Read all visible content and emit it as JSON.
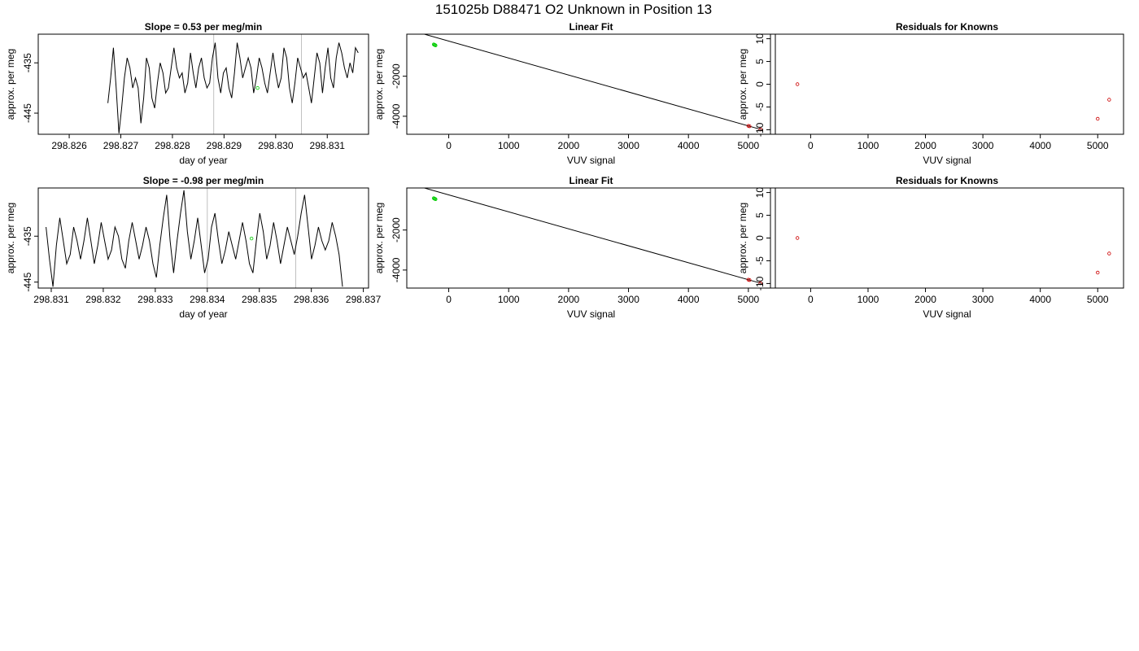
{
  "page_title": "151025b     D88471   O2 Unknown in Position  13",
  "colors": {
    "known": "#cc0000",
    "unknown": "#00cc00",
    "line": "#000000",
    "marker": "#c0c0c0"
  },
  "chart_data": [
    {
      "type": "line",
      "title": "Slope =  0.53  per meg/min",
      "xlabel": "day of year",
      "ylabel": "approx. per meg",
      "xlim": [
        298.8254,
        298.8318
      ],
      "ylim": [
        -449.2,
        -429.3
      ],
      "xticks": [
        298.826,
        298.827,
        298.828,
        298.829,
        298.83,
        298.831
      ],
      "xtick_labels": [
        "298.826",
        "298.827",
        "298.828",
        "298.829",
        "298.830",
        "298.831"
      ],
      "yticks": [
        -435,
        -445
      ],
      "ytick_labels": [
        "-435",
        "-445"
      ],
      "grid": false,
      "vertical_markers": [
        298.8288,
        298.8305
      ],
      "series": [
        {
          "x_start": 298.82675,
          "x_end": 298.8316,
          "values": [
            -443,
            -438,
            -432,
            -440,
            -449,
            -444,
            -438,
            -434,
            -436,
            -440,
            -438,
            -440,
            -447,
            -442,
            -434,
            -436,
            -442,
            -444,
            -439,
            -435,
            -437,
            -441,
            -440,
            -436,
            -432,
            -436,
            -438,
            -437,
            -441,
            -439,
            -433,
            -437,
            -440,
            -436,
            -434,
            -438,
            -440,
            -439,
            -434,
            -431,
            -438,
            -441,
            -437,
            -436,
            -440,
            -442,
            -437,
            -431,
            -434,
            -438,
            -436,
            -434,
            -436,
            -441,
            -438,
            -434,
            -436,
            -439,
            -441,
            -437,
            -433,
            -437,
            -440,
            -438,
            -432,
            -434,
            -440,
            -443,
            -439,
            -434,
            -436,
            -438,
            -437,
            -440,
            -443,
            -438,
            -433,
            -435,
            -441,
            -436,
            -432,
            -438,
            -440,
            -434,
            -431,
            -433,
            -436,
            -438,
            -435,
            -437,
            -432,
            -433
          ]
        }
      ],
      "points": [
        {
          "x": 298.82965,
          "y": -440,
          "color": "unknown"
        }
      ]
    },
    {
      "type": "scatter",
      "title": "Linear Fit",
      "xlabel": "VUV signal",
      "ylabel": "approx. per meg",
      "xlim": [
        -700,
        5450
      ],
      "ylim": [
        -4900,
        100
      ],
      "xticks": [
        0,
        1000,
        2000,
        3000,
        4000,
        5000
      ],
      "xtick_labels": [
        "0",
        "1000",
        "2000",
        "3000",
        "4000",
        "5000"
      ],
      "yticks": [
        -2000,
        -4000
      ],
      "ytick_labels": [
        "-2000",
        "-4000"
      ],
      "grid": false,
      "fit_line": {
        "x0": -500,
        "x1": 5220,
        "slope": -0.8476,
        "intercept": -245
      },
      "points": [
        {
          "x": -230,
          "y": -440,
          "color": "unknown"
        },
        {
          "x": -250,
          "y": -410,
          "color": "unknown"
        },
        {
          "x": -220,
          "y": -460,
          "color": "unknown"
        },
        {
          "x": -240,
          "y": -430,
          "color": "unknown"
        },
        {
          "x": 5000,
          "y": -4480,
          "color": "known"
        },
        {
          "x": 5020,
          "y": -4500,
          "color": "known"
        },
        {
          "x": 5200,
          "y": -4660,
          "color": "known"
        }
      ]
    },
    {
      "type": "scatter",
      "title": "Residuals for Knowns",
      "xlabel": "VUV signal",
      "ylabel": "approx. per meg",
      "xlim": [
        -700,
        5450
      ],
      "ylim": [
        -11,
        11
      ],
      "xticks": [
        0,
        1000,
        2000,
        3000,
        4000,
        5000
      ],
      "xtick_labels": [
        "0",
        "1000",
        "2000",
        "3000",
        "4000",
        "5000"
      ],
      "yticks": [
        10,
        5,
        0,
        -5,
        -10
      ],
      "ytick_labels": [
        "10",
        "5",
        "0",
        "-5",
        "-10"
      ],
      "grid": false,
      "points": [
        {
          "x": -230,
          "y": 0,
          "color": "known"
        },
        {
          "x": 5000,
          "y": -7.6,
          "color": "known"
        },
        {
          "x": 5200,
          "y": -3.4,
          "color": "known"
        }
      ]
    },
    {
      "type": "line",
      "title": "Slope =  -0.98  per meg/min",
      "xlabel": "day of year",
      "ylabel": "approx. per meg",
      "xlim": [
        298.83075,
        298.8371
      ],
      "ylim": [
        -446.3,
        -424.5
      ],
      "xticks": [
        298.831,
        298.832,
        298.833,
        298.834,
        298.835,
        298.836,
        298.837
      ],
      "xtick_labels": [
        "298.831",
        "298.832",
        "298.833",
        "298.834",
        "298.835",
        "298.836",
        "298.837"
      ],
      "yticks": [
        -435,
        -445
      ],
      "ytick_labels": [
        "-435",
        "-445"
      ],
      "grid": false,
      "vertical_markers": [
        298.834,
        298.8357
      ],
      "series": [
        {
          "x_start": 298.8309,
          "x_end": 298.8366,
          "values": [
            -433,
            -440,
            -446,
            -437,
            -431,
            -436,
            -441,
            -439,
            -433,
            -436,
            -440,
            -436,
            -431,
            -436,
            -441,
            -437,
            -432,
            -436,
            -440,
            -438,
            -433,
            -435,
            -440,
            -442,
            -436,
            -432,
            -436,
            -440,
            -437,
            -433,
            -436,
            -441,
            -444,
            -437,
            -431,
            -426,
            -436,
            -443,
            -436,
            -430,
            -425,
            -434,
            -440,
            -436,
            -431,
            -437,
            -443,
            -440,
            -433,
            -430,
            -436,
            -441,
            -438,
            -434,
            -437,
            -440,
            -436,
            -432,
            -436,
            -441,
            -443,
            -436,
            -430,
            -434,
            -440,
            -437,
            -432,
            -436,
            -441,
            -437,
            -433,
            -436,
            -439,
            -435,
            -430,
            -426,
            -433,
            -440,
            -437,
            -433,
            -436,
            -438,
            -436,
            -432,
            -435,
            -439,
            -446
          ]
        }
      ],
      "points": [
        {
          "x": 298.83485,
          "y": -435.5,
          "color": "unknown"
        }
      ]
    },
    {
      "type": "scatter",
      "title": "Linear Fit",
      "xlabel": "VUV signal",
      "ylabel": "approx. per meg",
      "xlim": [
        -700,
        5450
      ],
      "ylim": [
        -4900,
        100
      ],
      "xticks": [
        0,
        1000,
        2000,
        3000,
        4000,
        5000
      ],
      "xtick_labels": [
        "0",
        "1000",
        "2000",
        "3000",
        "4000",
        "5000"
      ],
      "yticks": [
        -2000,
        -4000
      ],
      "ytick_labels": [
        "-2000",
        "-4000"
      ],
      "grid": false,
      "fit_line": {
        "x0": -500,
        "x1": 5220,
        "slope": -0.8476,
        "intercept": -245
      },
      "points": [
        {
          "x": -230,
          "y": -440,
          "color": "unknown"
        },
        {
          "x": -250,
          "y": -410,
          "color": "unknown"
        },
        {
          "x": -220,
          "y": -460,
          "color": "unknown"
        },
        {
          "x": -240,
          "y": -430,
          "color": "unknown"
        },
        {
          "x": 5000,
          "y": -4480,
          "color": "known"
        },
        {
          "x": 5020,
          "y": -4500,
          "color": "known"
        },
        {
          "x": 5200,
          "y": -4660,
          "color": "known"
        }
      ]
    },
    {
      "type": "scatter",
      "title": "Residuals for Knowns",
      "xlabel": "VUV signal",
      "ylabel": "approx. per meg",
      "xlim": [
        -700,
        5450
      ],
      "ylim": [
        -11,
        11
      ],
      "xticks": [
        0,
        1000,
        2000,
        3000,
        4000,
        5000
      ],
      "xtick_labels": [
        "0",
        "1000",
        "2000",
        "3000",
        "4000",
        "5000"
      ],
      "yticks": [
        10,
        5,
        0,
        -5,
        -10
      ],
      "ytick_labels": [
        "10",
        "5",
        "0",
        "-5",
        "-10"
      ],
      "grid": false,
      "points": [
        {
          "x": -230,
          "y": 0,
          "color": "known"
        },
        {
          "x": 5000,
          "y": -7.6,
          "color": "known"
        },
        {
          "x": 5200,
          "y": -3.4,
          "color": "known"
        }
      ]
    }
  ]
}
